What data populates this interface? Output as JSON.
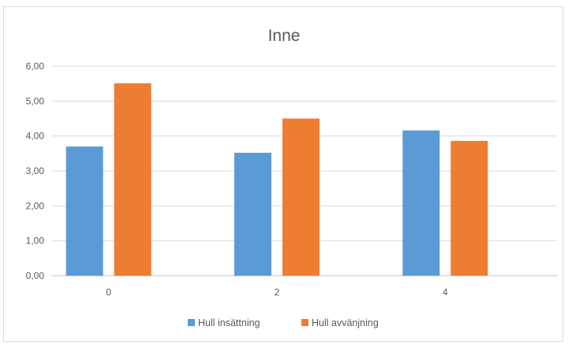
{
  "chart_data": {
    "type": "bar",
    "title": "Inne",
    "categories": [
      "0",
      "2",
      "4"
    ],
    "series": [
      {
        "name": "Hull insättning",
        "values": [
          3.7,
          3.52,
          4.16
        ],
        "color": "#5b9bd5"
      },
      {
        "name": "Hull avvänjning",
        "values": [
          5.51,
          4.5,
          3.86
        ],
        "color": "#ed7d31"
      }
    ],
    "ylim": [
      0,
      6
    ],
    "yticks": [
      "0,00",
      "1,00",
      "2,00",
      "3,00",
      "4,00",
      "5,00",
      "6,00"
    ],
    "grid": true,
    "legend": "bottom"
  }
}
